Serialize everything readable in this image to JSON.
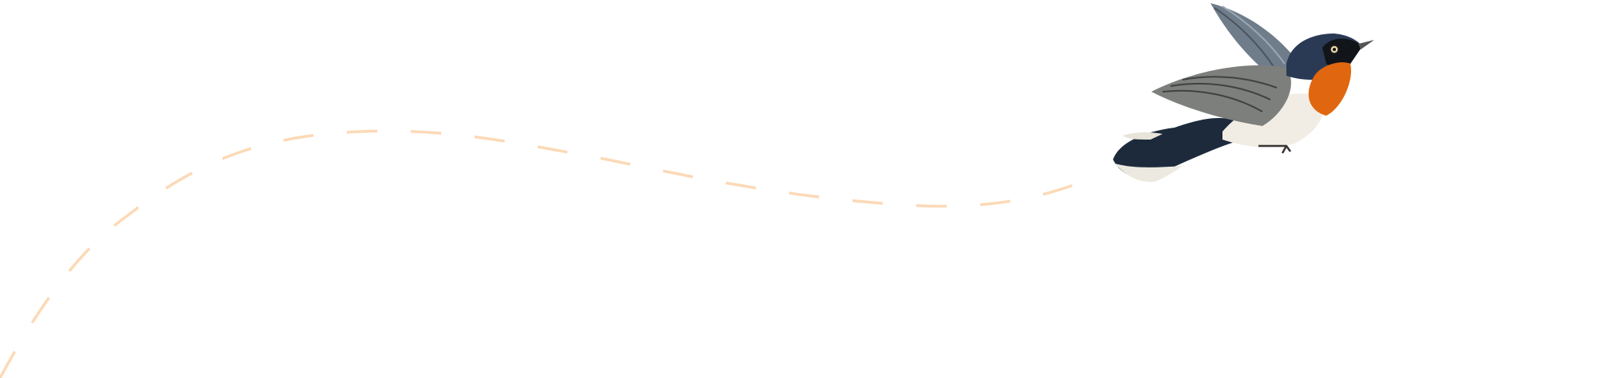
{
  "decoration": {
    "flight_path_color": "#fcd9b6",
    "bird": {
      "icon": "bird-illustration",
      "colors": {
        "head": "#2a3a55",
        "throat": "#e0670f",
        "belly": "#f2ede4",
        "wing": "#7d7f7c",
        "tail": "#1c2a3c"
      }
    }
  }
}
